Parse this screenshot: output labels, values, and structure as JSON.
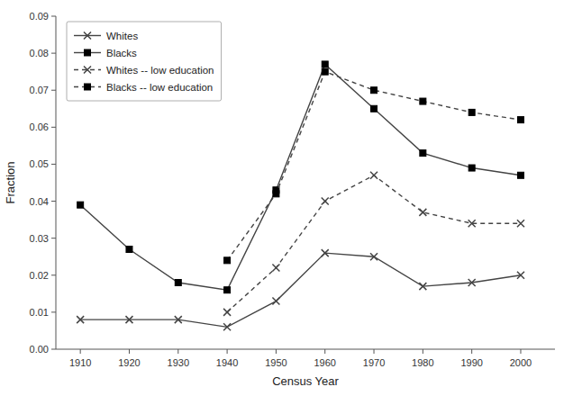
{
  "chart_data": {
    "type": "line",
    "xlabel": "Census Year",
    "ylabel": "Fraction",
    "x": [
      1910,
      1920,
      1930,
      1940,
      1950,
      1960,
      1970,
      1980,
      1990,
      2000
    ],
    "series": [
      {
        "name": "Whites",
        "color": "#444444",
        "marker": "x",
        "line_style": "solid",
        "values": [
          0.008,
          0.008,
          0.008,
          0.006,
          0.013,
          0.026,
          0.025,
          0.017,
          0.018,
          0.02
        ]
      },
      {
        "name": "Blacks",
        "color": "#444444",
        "marker": "square",
        "line_style": "solid",
        "values": [
          0.039,
          0.027,
          0.018,
          0.016,
          0.043,
          0.077,
          0.065,
          0.053,
          0.049,
          0.047
        ]
      },
      {
        "name": "Whites -- low education",
        "color": "#444444",
        "marker": "x",
        "line_style": "dashed",
        "values": [
          null,
          null,
          null,
          0.01,
          0.022,
          0.04,
          0.047,
          0.037,
          0.034,
          0.034
        ]
      },
      {
        "name": "Blacks -- low education",
        "color": "#444444",
        "marker": "square",
        "line_style": "dashed",
        "values": [
          null,
          null,
          null,
          0.024,
          0.042,
          0.075,
          0.07,
          0.067,
          0.064,
          0.062
        ]
      }
    ],
    "xlim": [
      1905,
      2007
    ],
    "xticks": [
      1910,
      1920,
      1930,
      1940,
      1950,
      1960,
      1970,
      1980,
      1990,
      2000
    ],
    "ylim": [
      0.0,
      0.09
    ],
    "yticks": [
      {
        "value": 0,
        "label": "0.00"
      },
      0.01,
      0.02,
      0.03,
      0.04,
      0.05,
      0.06,
      0.07,
      0.08,
      0.09
    ],
    "grid": false,
    "legend": "upper left"
  }
}
